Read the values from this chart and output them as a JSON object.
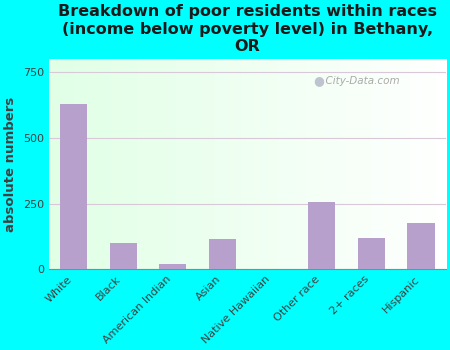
{
  "title": "Breakdown of poor residents within races\n(income below poverty level) in Bethany,\nOR",
  "ylabel": "absolute numbers",
  "categories": [
    "White",
    "Black",
    "American Indian",
    "Asian",
    "Native Hawaiian",
    "Other race",
    "2+ races",
    "Hispanic"
  ],
  "values": [
    630,
    100,
    20,
    115,
    0,
    255,
    120,
    175
  ],
  "bar_color": "#b8a0cc",
  "background_color": "#00ffff",
  "ylim": [
    0,
    800
  ],
  "yticks": [
    0,
    250,
    500,
    750
  ],
  "grid_color": "#d8c8d8",
  "title_fontsize": 11.5,
  "ylabel_fontsize": 9.5,
  "tick_fontsize": 8,
  "watermark": "City-Data.com"
}
